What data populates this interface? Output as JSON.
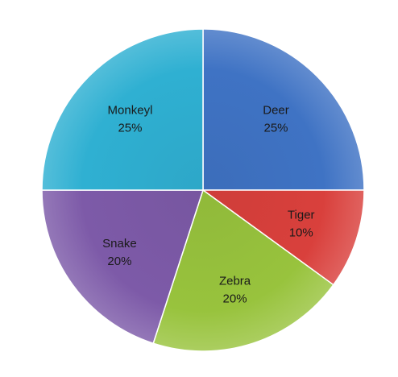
{
  "chart_data": {
    "type": "pie",
    "title": "",
    "slices": [
      {
        "label": "Deer",
        "value": 25,
        "value_label": "25%",
        "color": "#3f73c4"
      },
      {
        "label": "Tiger",
        "value": 10,
        "value_label": "10%",
        "color": "#d9403c"
      },
      {
        "label": "Zebra",
        "value": 20,
        "value_label": "20%",
        "color": "#98c33d"
      },
      {
        "label": "Snake",
        "value": 20,
        "value_label": "20%",
        "color": "#7d5aa8"
      },
      {
        "label": "Monkeyl",
        "value": 25,
        "value_label": "25%",
        "color": "#2fb0d2"
      }
    ],
    "start_angle_deg": 0,
    "direction": "clockwise",
    "legend": "none"
  }
}
